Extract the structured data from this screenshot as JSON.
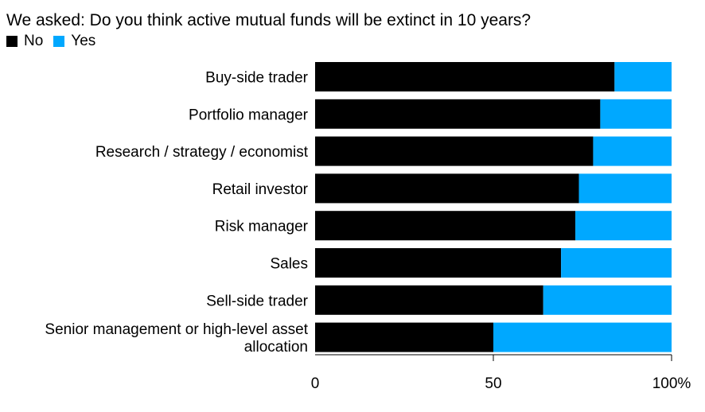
{
  "colors": {
    "no": "#000000",
    "yes": "#00a8ff"
  },
  "chart_data": {
    "type": "bar",
    "orientation": "horizontal",
    "stacked": true,
    "title": "We asked: Do you think active mutual funds will be extinct in 10 years?",
    "categories": [
      [
        "Buy-side trader"
      ],
      [
        "Portfolio manager"
      ],
      [
        "Research / strategy / economist"
      ],
      [
        "Retail investor"
      ],
      [
        "Risk manager"
      ],
      [
        "Sales"
      ],
      [
        "Sell-side trader"
      ],
      [
        "Senior management or high-level asset",
        "allocation"
      ]
    ],
    "series": [
      {
        "name": "No",
        "color": "#000000",
        "values": [
          84,
          80,
          78,
          74,
          73,
          69,
          64,
          50
        ]
      },
      {
        "name": "Yes",
        "color": "#00a8ff",
        "values": [
          16,
          20,
          22,
          26,
          27,
          31,
          36,
          50
        ]
      }
    ],
    "xlim": [
      0,
      100
    ],
    "xticks": [
      "0",
      "50",
      "100%"
    ],
    "xtick_values": [
      0,
      50,
      100
    ],
    "legend_position": "top-left",
    "grid": false
  }
}
